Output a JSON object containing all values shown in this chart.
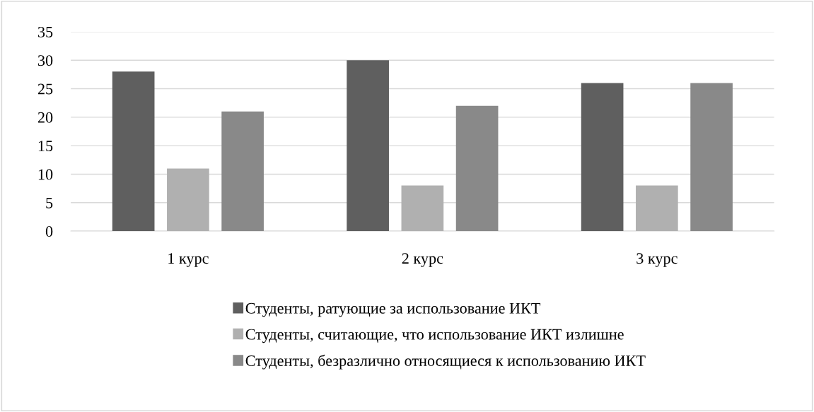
{
  "chart_data": {
    "type": "bar",
    "categories": [
      "1 курс",
      "2 курс",
      "3 курс"
    ],
    "series": [
      {
        "name": "Студенты, ратующие за использование ИКТ",
        "color": "#5f5f5f",
        "values": [
          28,
          30,
          26
        ]
      },
      {
        "name": "Студенты, считающие, что использование ИКТ излишне",
        "color": "#b0b0b0",
        "values": [
          11,
          8,
          8
        ]
      },
      {
        "name": "Студенты, безразлично относящиеся к использованию ИКТ",
        "color": "#898989",
        "values": [
          21,
          22,
          26
        ]
      }
    ],
    "ylim": [
      0,
      35
    ],
    "yticks": [
      0,
      5,
      10,
      15,
      20,
      25,
      30,
      35
    ],
    "grid": "y",
    "legend": "bottom"
  }
}
